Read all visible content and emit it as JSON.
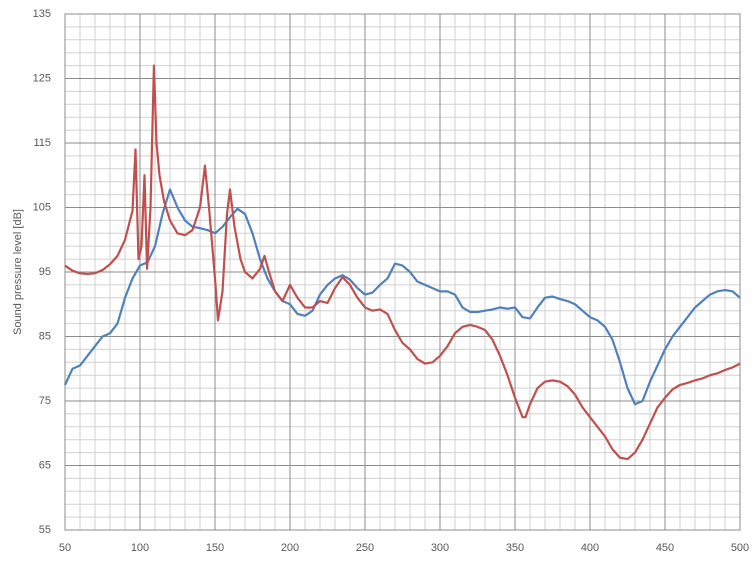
{
  "chart_data": {
    "type": "line",
    "ylabel": "Sound pressure level [dB]",
    "xlim": [
      50,
      500
    ],
    "xticks": [
      50,
      100,
      150,
      200,
      250,
      300,
      350,
      400,
      450,
      500
    ],
    "ylim": [
      55,
      135
    ],
    "yticks": [
      55,
      65,
      75,
      85,
      95,
      105,
      115,
      125,
      135
    ],
    "grid": true,
    "series": [
      {
        "color": "#4f81bd",
        "x": [
          50,
          55,
          60,
          65,
          70,
          75,
          80,
          85,
          90,
          95,
          100,
          105,
          110,
          115,
          120,
          125,
          130,
          135,
          140,
          145,
          150,
          155,
          160,
          165,
          170,
          175,
          180,
          185,
          190,
          195,
          200,
          205,
          210,
          215,
          220,
          225,
          230,
          235,
          240,
          245,
          250,
          255,
          260,
          265,
          270,
          275,
          280,
          285,
          290,
          295,
          300,
          305,
          310,
          315,
          320,
          325,
          330,
          335,
          340,
          345,
          350,
          355,
          360,
          365,
          370,
          375,
          380,
          385,
          390,
          395,
          400,
          405,
          410,
          415,
          420,
          425,
          430,
          435,
          440,
          445,
          450,
          455,
          460,
          465,
          470,
          475,
          480,
          485,
          490,
          495,
          500
        ],
        "values": [
          77.5,
          80,
          80.5,
          82,
          83.5,
          85,
          85.5,
          87,
          91,
          94,
          96,
          96.5,
          99,
          104,
          107.8,
          105,
          103,
          102,
          101.8,
          101.5,
          101,
          102,
          103.5,
          104.8,
          104,
          101,
          97,
          94,
          92,
          90.5,
          90,
          88.5,
          88.2,
          89,
          91.5,
          93,
          94,
          94.5,
          93.8,
          92.5,
          91.5,
          91.8,
          93,
          94,
          96.3,
          96,
          95,
          93.5,
          93,
          92.5,
          92,
          92,
          91.5,
          89.5,
          88.8,
          88.8,
          89,
          89.2,
          89.5,
          89.3,
          89.5,
          88,
          87.8,
          89.5,
          91,
          91.2,
          90.8,
          90.5,
          90,
          89,
          88,
          87.5,
          86.5,
          84.5,
          81,
          77,
          74.5,
          75,
          78,
          80.5,
          83,
          85,
          86.5,
          88,
          89.5,
          90.5,
          91.5,
          92,
          92.2,
          92,
          91
        ]
      },
      {
        "color": "#c0504d",
        "x": [
          50,
          55,
          60,
          65,
          70,
          75,
          80,
          85,
          90,
          95,
          97,
          99,
          101,
          103,
          104.7,
          107,
          109.3,
          111,
          113,
          116,
          120,
          125,
          130,
          135,
          140,
          143.3,
          146,
          150,
          152,
          155,
          158,
          160,
          163,
          167,
          170,
          175,
          180,
          183,
          186,
          190,
          195,
          200,
          205,
          210,
          215,
          220,
          225,
          230,
          235,
          240,
          245,
          250,
          255,
          260,
          265,
          270,
          275,
          280,
          285,
          290,
          295,
          300,
          305,
          310,
          315,
          320,
          325,
          330,
          335,
          340,
          345,
          350,
          355,
          357,
          360,
          365,
          370,
          375,
          380,
          385,
          390,
          395,
          400,
          405,
          410,
          415,
          420,
          425,
          430,
          435,
          440,
          445,
          450,
          455,
          460,
          465,
          470,
          475,
          480,
          485,
          490,
          495,
          500
        ],
        "values": [
          96,
          95.2,
          94.8,
          94.7,
          94.8,
          95.3,
          96.2,
          97.5,
          100,
          104.5,
          114,
          97,
          99,
          110,
          95.5,
          105,
          127,
          115,
          110,
          106,
          103,
          101,
          100.7,
          101.5,
          105,
          111.5,
          105,
          94,
          87.5,
          92,
          104,
          107.8,
          102,
          97,
          95,
          94,
          95.5,
          97.5,
          95,
          92,
          90.5,
          93,
          91,
          89.5,
          89.5,
          90.5,
          90.2,
          92.5,
          94.2,
          93,
          91,
          89.5,
          89,
          89.2,
          88.5,
          86,
          84,
          83,
          81.5,
          80.8,
          81,
          82,
          83.5,
          85.5,
          86.5,
          86.8,
          86.5,
          86,
          84.5,
          82,
          79,
          75.5,
          72.5,
          72.5,
          74.5,
          77,
          78,
          78.2,
          78,
          77.3,
          76,
          74,
          72.5,
          71,
          69.5,
          67.5,
          66.2,
          66,
          67,
          69,
          71.5,
          74,
          75.5,
          76.8,
          77.5,
          77.8,
          78.2,
          78.5,
          79,
          79.3,
          79.8,
          80.2,
          80.8
        ]
      }
    ]
  }
}
